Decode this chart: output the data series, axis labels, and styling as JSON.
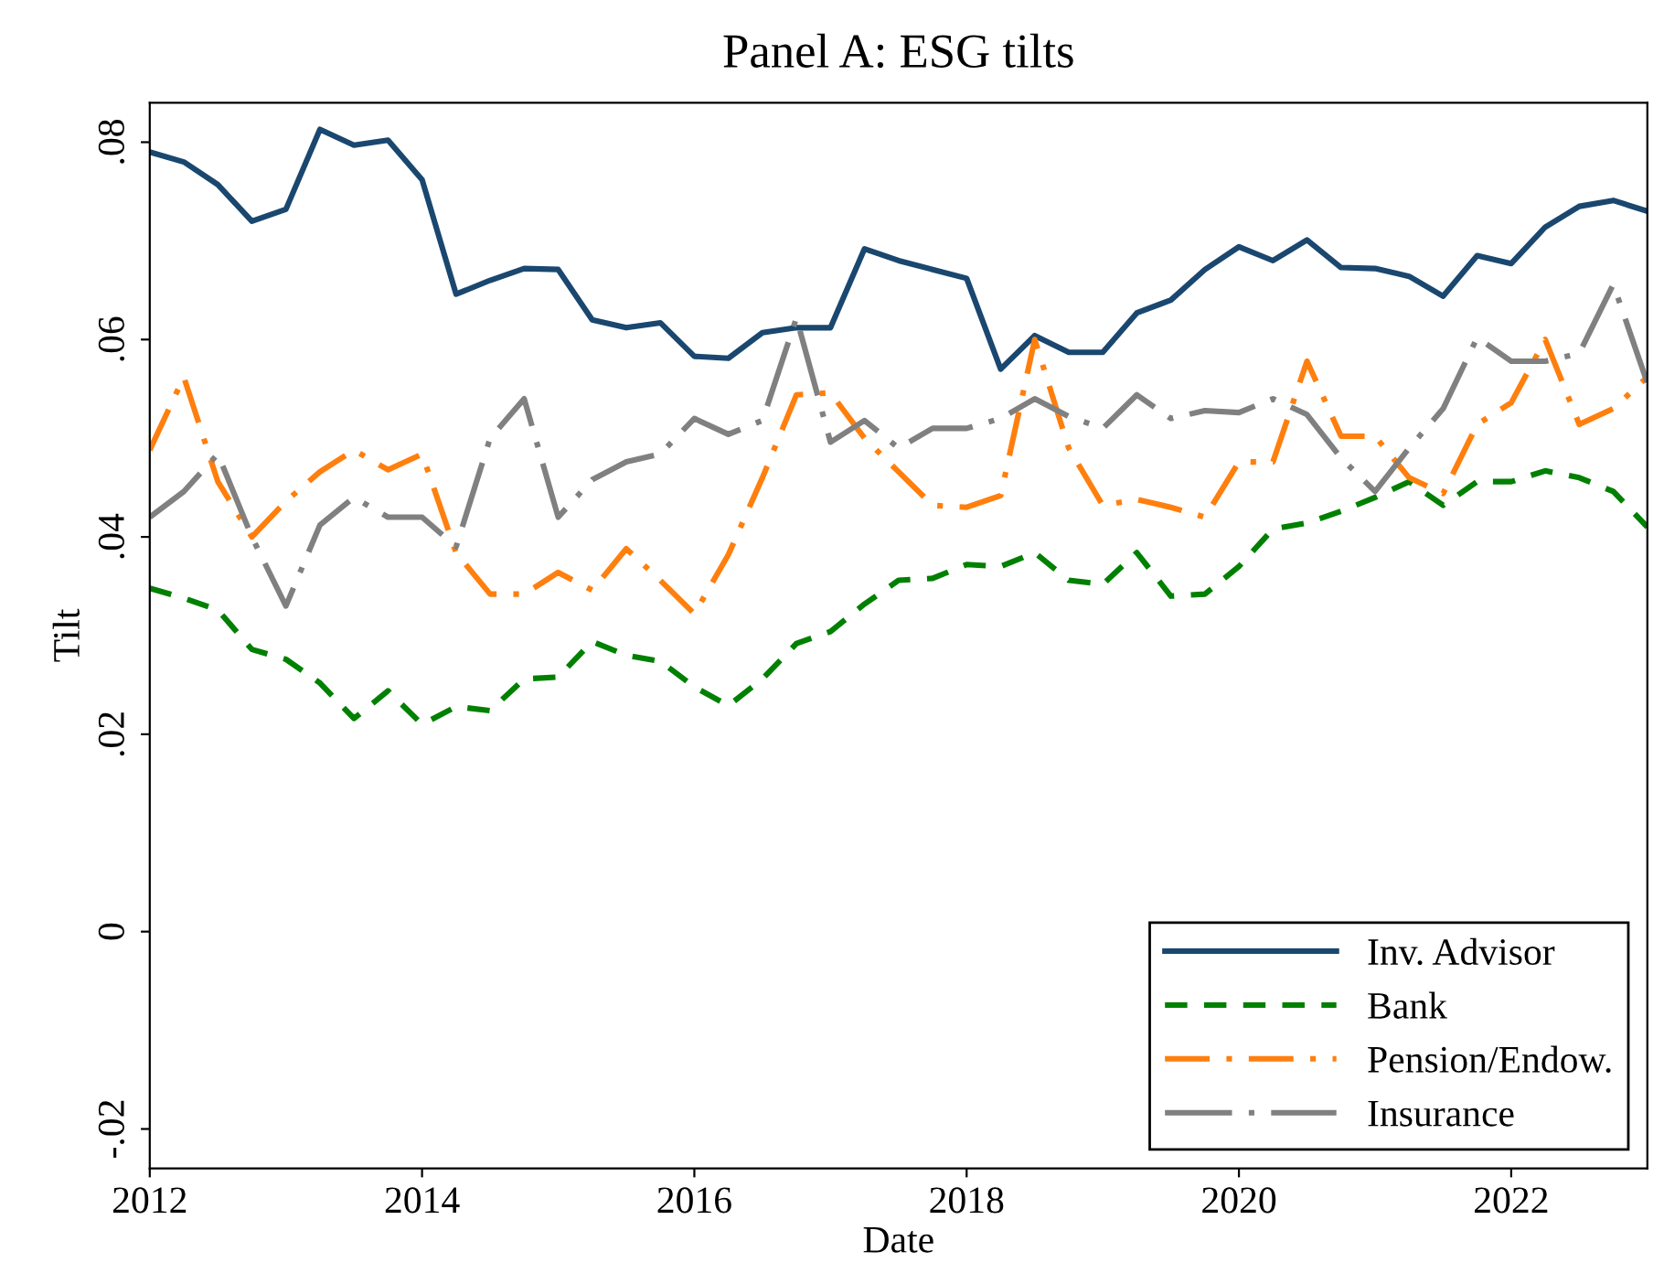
{
  "chart_data": {
    "type": "line",
    "title": "Panel A: ESG tilts",
    "xlabel": "Date",
    "ylabel": "Tilt",
    "x": [
      2012,
      2012.25,
      2012.5,
      2012.75,
      2013,
      2013.25,
      2013.5,
      2013.75,
      2014,
      2014.25,
      2014.5,
      2014.75,
      2015,
      2015.25,
      2015.5,
      2015.75,
      2016,
      2016.25,
      2016.5,
      2016.75,
      2017,
      2017.25,
      2017.5,
      2017.75,
      2018,
      2018.25,
      2018.5,
      2018.75,
      2019,
      2019.25,
      2019.5,
      2019.75,
      2020,
      2020.25,
      2020.5,
      2020.75,
      2021,
      2021.25,
      2021.5,
      2021.75,
      2022,
      2022.25,
      2022.5,
      2022.75,
      2023
    ],
    "series": [
      {
        "name": "Inv. Advisor",
        "color": "#1a476f",
        "line_style": "solid",
        "values": [
          0.079,
          0.078,
          0.0757,
          0.072,
          0.0732,
          0.0813,
          0.0797,
          0.0802,
          0.0762,
          0.0646,
          0.066,
          0.0672,
          0.0671,
          0.062,
          0.0612,
          0.0617,
          0.0583,
          0.0581,
          0.0607,
          0.0612,
          0.0612,
          0.0692,
          0.068,
          0.0671,
          0.0662,
          0.057,
          0.0604,
          0.0587,
          0.0587,
          0.0627,
          0.064,
          0.0671,
          0.0694,
          0.068,
          0.0701,
          0.0673,
          0.0672,
          0.0664,
          0.0644,
          0.0685,
          0.0677,
          0.0714,
          0.0735,
          0.0741,
          0.073
        ]
      },
      {
        "name": "Bank",
        "color": "#008000",
        "line_style": "dashed",
        "values": [
          0.0348,
          0.0338,
          0.0326,
          0.0286,
          0.0276,
          0.0252,
          0.0216,
          0.0244,
          0.021,
          0.0228,
          0.0224,
          0.0256,
          0.0258,
          0.0294,
          0.028,
          0.0274,
          0.0248,
          0.0229,
          0.0256,
          0.0292,
          0.0304,
          0.0332,
          0.0356,
          0.0358,
          0.0372,
          0.037,
          0.0384,
          0.0356,
          0.0352,
          0.0384,
          0.034,
          0.0342,
          0.037,
          0.0408,
          0.0414,
          0.0426,
          0.044,
          0.0456,
          0.0432,
          0.0456,
          0.0456,
          0.0467,
          0.046,
          0.0446,
          0.041
        ]
      },
      {
        "name": "Pension/Endow.",
        "color": "#ff7f0e",
        "line_style": "dashdot",
        "values": [
          0.0488,
          0.0562,
          0.0456,
          0.04,
          0.0436,
          0.0466,
          0.0488,
          0.0468,
          0.0484,
          0.0384,
          0.0342,
          0.0342,
          0.0364,
          0.0346,
          0.0388,
          0.0356,
          0.0322,
          0.0382,
          0.046,
          0.0544,
          0.0546,
          0.05,
          0.0466,
          0.0432,
          0.043,
          0.0442,
          0.06,
          0.049,
          0.0432,
          0.0438,
          0.043,
          0.042,
          0.0476,
          0.0476,
          0.0578,
          0.0502,
          0.0502,
          0.046,
          0.0444,
          0.0514,
          0.0536,
          0.06,
          0.0514,
          0.053,
          0.0562
        ]
      },
      {
        "name": "Insurance",
        "color": "#808080",
        "line_style": "longdashdot",
        "values": [
          0.042,
          0.0446,
          0.0484,
          0.04,
          0.033,
          0.0412,
          0.044,
          0.042,
          0.042,
          0.039,
          0.05,
          0.054,
          0.042,
          0.0458,
          0.0476,
          0.0484,
          0.052,
          0.0504,
          0.0518,
          0.0622,
          0.0496,
          0.0518,
          0.049,
          0.051,
          0.051,
          0.052,
          0.054,
          0.0522,
          0.051,
          0.0544,
          0.052,
          0.0528,
          0.0526,
          0.054,
          0.0524,
          0.048,
          0.0446,
          0.049,
          0.053,
          0.0602,
          0.0578,
          0.0578,
          0.0586,
          0.0656,
          0.0556
        ]
      }
    ],
    "xlim": [
      2012,
      2023
    ],
    "xticks": [
      2012,
      2014,
      2016,
      2018,
      2020,
      2022
    ],
    "ylim": [
      -0.024,
      0.084
    ],
    "yticks": [
      {
        "value": -0.02,
        "label": "-.02"
      },
      {
        "value": 0,
        "label": "0"
      },
      {
        "value": 0.02,
        "label": ".02"
      },
      {
        "value": 0.04,
        "label": ".04"
      },
      {
        "value": 0.06,
        "label": ".06"
      },
      {
        "value": 0.08,
        "label": ".08"
      }
    ],
    "grid": false,
    "legend": "bottom right"
  }
}
